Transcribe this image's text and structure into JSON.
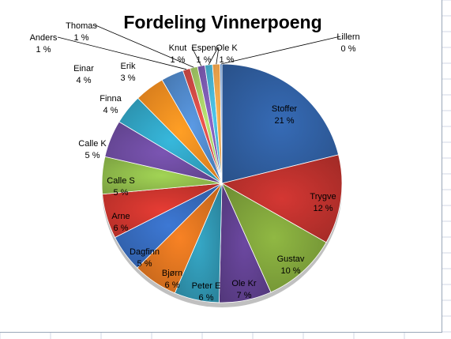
{
  "chart_data": {
    "type": "pie",
    "title": "Fordeling  Vinnerpoeng",
    "legend": "none",
    "categories": [
      "Stoffer",
      "Trygve",
      "Gustav",
      "Ole Kr",
      "Peter E",
      "Bjørn",
      "Dagfinn",
      "Arne",
      "Calle S",
      "Calle K",
      "Finna",
      "Einar",
      "Erik",
      "Anders",
      "Thomas",
      "Knut",
      "Espen",
      "Ole K",
      "Lillern"
    ],
    "values": [
      21,
      12,
      10,
      7,
      6,
      6,
      5,
      6,
      5,
      5,
      4,
      4,
      3,
      1,
      1,
      1,
      1,
      1,
      0
    ],
    "value_labels": [
      "21 %",
      "12 %",
      "10 %",
      "7 %",
      "6 %",
      "6 %",
      "5 %",
      "6 %",
      "5 %",
      "5 %",
      "4 %",
      "4 %",
      "3 %",
      "1 %",
      "1 %",
      "1 %",
      "1 %",
      "1 %",
      "0 %"
    ],
    "colors": [
      "#2f5d9e",
      "#b8302c",
      "#7da03a",
      "#5e3f8c",
      "#2f92ad",
      "#d8711f",
      "#3568b8",
      "#c8342d",
      "#8db84a",
      "#6b4a9c",
      "#30a0bf",
      "#f28a20",
      "#4f86c6",
      "#d04a45",
      "#a3c965",
      "#7b5ab0",
      "#45b0cf",
      "#f7a24a",
      "#5d8fcf"
    ]
  },
  "colors": {
    "background": "#ffffff",
    "grid": "#d0d7e5",
    "frame": "#9aa7b8"
  }
}
